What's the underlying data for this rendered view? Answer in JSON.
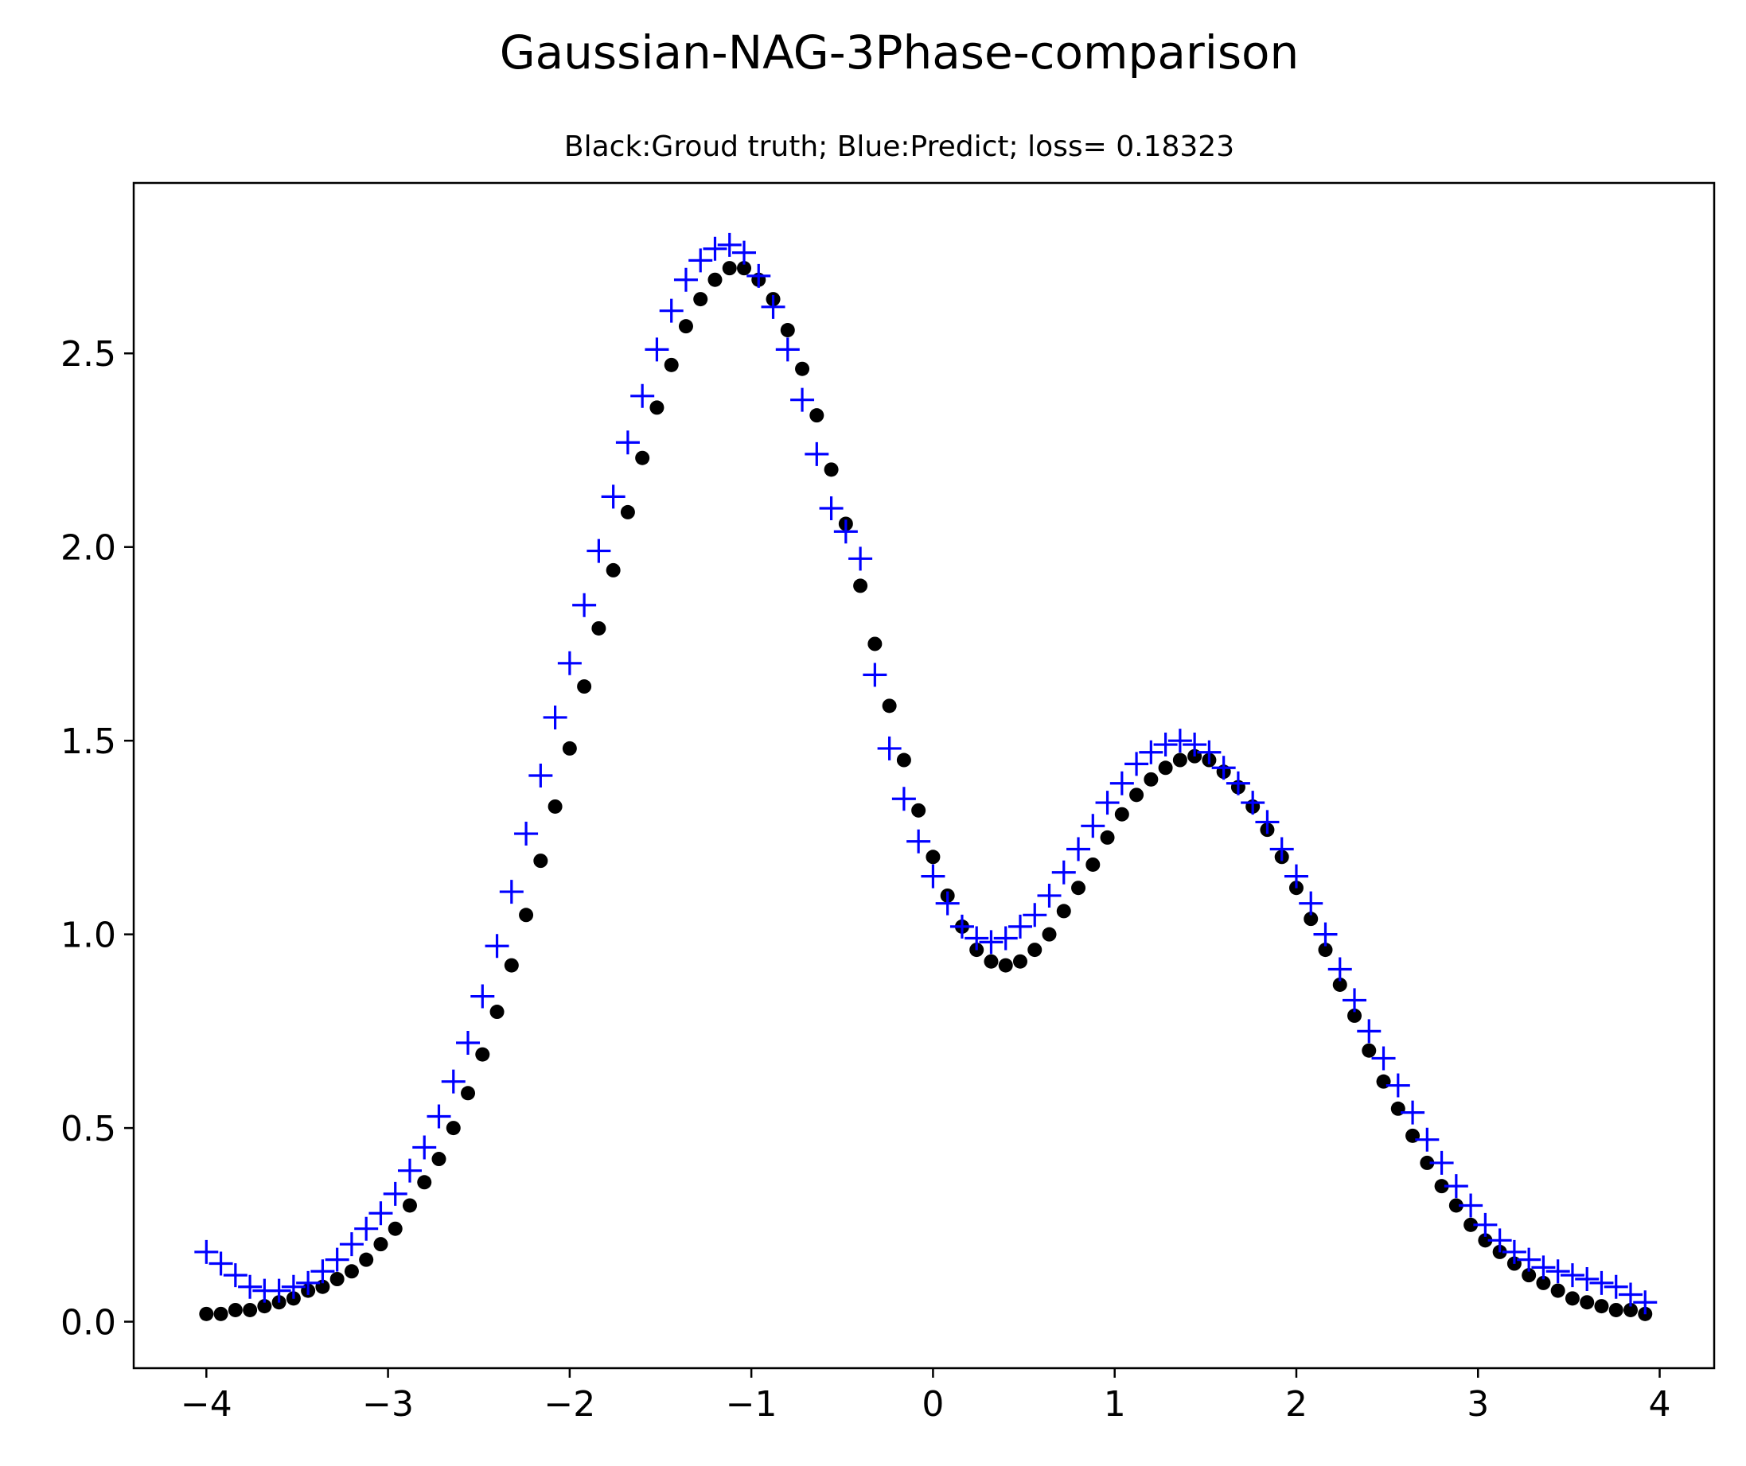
{
  "chart_data": {
    "type": "scatter",
    "title": "Gaussian-NAG-3Phase-comparison",
    "subtitle": "Black:Groud truth; Blue:Predict; loss= 0.18323",
    "xlim": [
      -4.4,
      4.3
    ],
    "ylim": [
      -0.12,
      2.94
    ],
    "x_ticks": [
      -4,
      -3,
      -2,
      -1,
      0,
      1,
      2,
      3,
      4
    ],
    "x_tick_labels": [
      "−4",
      "−3",
      "−2",
      "−1",
      "0",
      "1",
      "2",
      "3",
      "4"
    ],
    "y_ticks": [
      0.0,
      0.5,
      1.0,
      1.5,
      2.0,
      2.5
    ],
    "y_tick_labels": [
      "0.0",
      "0.5",
      "1.0",
      "1.5",
      "2.0",
      "2.5"
    ],
    "grid": false,
    "colors": {
      "ground_truth": "#000000",
      "predict": "#0000ff"
    },
    "series": [
      {
        "marker": "dot",
        "color": "#000000",
        "x": [
          -4.0,
          -3.92,
          -3.84,
          -3.76,
          -3.68,
          -3.6,
          -3.52,
          -3.44,
          -3.36,
          -3.28,
          -3.2,
          -3.12,
          -3.04,
          -2.96,
          -2.88,
          -2.8,
          -2.72,
          -2.64,
          -2.56,
          -2.48,
          -2.4,
          -2.32,
          -2.24,
          -2.16,
          -2.08,
          -2.0,
          -1.92,
          -1.84,
          -1.76,
          -1.68,
          -1.6,
          -1.52,
          -1.44,
          -1.36,
          -1.28,
          -1.2,
          -1.12,
          -1.04,
          -0.96,
          -0.88,
          -0.8,
          -0.72,
          -0.64,
          -0.56,
          -0.48,
          -0.4,
          -0.32,
          -0.24,
          -0.16,
          -0.08,
          0.0,
          0.08,
          0.16,
          0.24,
          0.32,
          0.4,
          0.48,
          0.56,
          0.64,
          0.72,
          0.8,
          0.88,
          0.96,
          1.04,
          1.12,
          1.2,
          1.28,
          1.36,
          1.44,
          1.52,
          1.6,
          1.68,
          1.76,
          1.84,
          1.92,
          2.0,
          2.08,
          2.16,
          2.24,
          2.32,
          2.4,
          2.48,
          2.56,
          2.64,
          2.72,
          2.8,
          2.88,
          2.96,
          3.04,
          3.12,
          3.2,
          3.28,
          3.36,
          3.44,
          3.52,
          3.6,
          3.68,
          3.76,
          3.84,
          3.92
        ],
        "y": [
          0.02,
          0.02,
          0.03,
          0.03,
          0.04,
          0.05,
          0.06,
          0.08,
          0.09,
          0.11,
          0.13,
          0.16,
          0.2,
          0.24,
          0.3,
          0.36,
          0.42,
          0.5,
          0.59,
          0.69,
          0.8,
          0.92,
          1.05,
          1.19,
          1.33,
          1.48,
          1.64,
          1.79,
          1.94,
          2.09,
          2.23,
          2.36,
          2.47,
          2.57,
          2.64,
          2.69,
          2.72,
          2.72,
          2.69,
          2.64,
          2.56,
          2.46,
          2.34,
          2.2,
          2.06,
          1.9,
          1.75,
          1.59,
          1.45,
          1.32,
          1.2,
          1.1,
          1.02,
          0.96,
          0.93,
          0.92,
          0.93,
          0.96,
          1.0,
          1.06,
          1.12,
          1.18,
          1.25,
          1.31,
          1.36,
          1.4,
          1.43,
          1.45,
          1.46,
          1.45,
          1.42,
          1.38,
          1.33,
          1.27,
          1.2,
          1.12,
          1.04,
          0.96,
          0.87,
          0.79,
          0.7,
          0.62,
          0.55,
          0.48,
          0.41,
          0.35,
          0.3,
          0.25,
          0.21,
          0.18,
          0.15,
          0.12,
          0.1,
          0.08,
          0.06,
          0.05,
          0.04,
          0.03,
          0.03,
          0.02
        ]
      },
      {
        "marker": "plus",
        "color": "#0000ff",
        "x": [
          -4.0,
          -3.92,
          -3.84,
          -3.76,
          -3.68,
          -3.6,
          -3.52,
          -3.44,
          -3.36,
          -3.28,
          -3.2,
          -3.12,
          -3.04,
          -2.96,
          -2.88,
          -2.8,
          -2.72,
          -2.64,
          -2.56,
          -2.48,
          -2.4,
          -2.32,
          -2.24,
          -2.16,
          -2.08,
          -2.0,
          -1.92,
          -1.84,
          -1.76,
          -1.68,
          -1.6,
          -1.52,
          -1.44,
          -1.36,
          -1.28,
          -1.2,
          -1.12,
          -1.04,
          -0.96,
          -0.88,
          -0.8,
          -0.72,
          -0.64,
          -0.56,
          -0.48,
          -0.4,
          -0.32,
          -0.24,
          -0.16,
          -0.08,
          0.0,
          0.08,
          0.16,
          0.24,
          0.32,
          0.4,
          0.48,
          0.56,
          0.64,
          0.72,
          0.8,
          0.88,
          0.96,
          1.04,
          1.12,
          1.2,
          1.28,
          1.36,
          1.44,
          1.52,
          1.6,
          1.68,
          1.76,
          1.84,
          1.92,
          2.0,
          2.08,
          2.16,
          2.24,
          2.32,
          2.4,
          2.48,
          2.56,
          2.64,
          2.72,
          2.8,
          2.88,
          2.96,
          3.04,
          3.12,
          3.2,
          3.28,
          3.36,
          3.44,
          3.52,
          3.6,
          3.68,
          3.76,
          3.84,
          3.92
        ],
        "y": [
          0.18,
          0.15,
          0.12,
          0.09,
          0.08,
          0.08,
          0.09,
          0.1,
          0.13,
          0.16,
          0.2,
          0.24,
          0.28,
          0.33,
          0.39,
          0.45,
          0.53,
          0.62,
          0.72,
          0.84,
          0.97,
          1.11,
          1.26,
          1.41,
          1.56,
          1.7,
          1.85,
          1.99,
          2.13,
          2.27,
          2.39,
          2.51,
          2.61,
          2.69,
          2.74,
          2.77,
          2.78,
          2.76,
          2.7,
          2.62,
          2.51,
          2.38,
          2.24,
          2.1,
          2.04,
          1.97,
          1.67,
          1.48,
          1.35,
          1.24,
          1.15,
          1.08,
          1.02,
          0.99,
          0.98,
          0.99,
          1.02,
          1.05,
          1.1,
          1.16,
          1.22,
          1.28,
          1.34,
          1.39,
          1.44,
          1.47,
          1.49,
          1.5,
          1.49,
          1.47,
          1.43,
          1.39,
          1.34,
          1.29,
          1.22,
          1.15,
          1.08,
          1.0,
          0.91,
          0.83,
          0.75,
          0.68,
          0.61,
          0.54,
          0.47,
          0.41,
          0.35,
          0.3,
          0.25,
          0.21,
          0.18,
          0.16,
          0.14,
          0.13,
          0.12,
          0.11,
          0.1,
          0.09,
          0.07,
          0.05
        ]
      }
    ]
  }
}
